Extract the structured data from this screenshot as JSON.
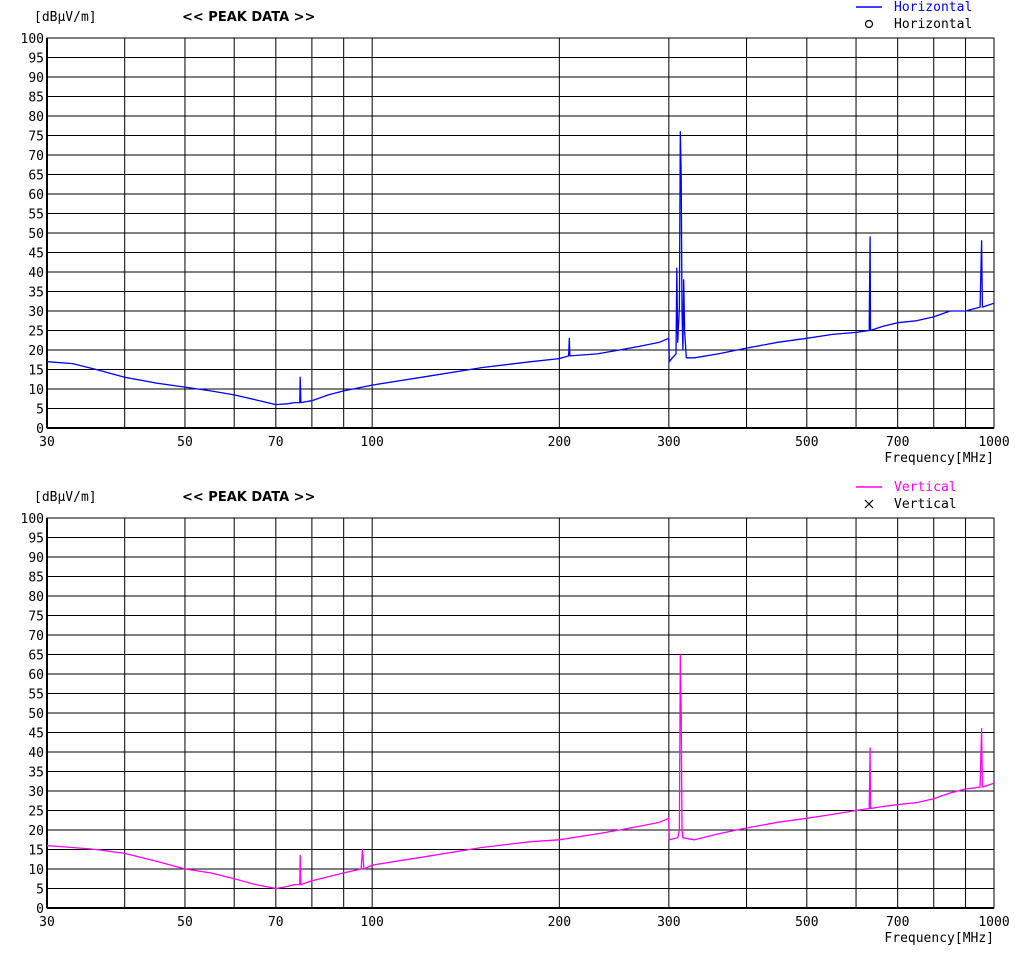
{
  "chart_data": [
    {
      "type": "line",
      "title": "<< PEAK DATA >>",
      "ylabel": "[dBμV/m]",
      "xlabel": "Frequency[MHz]",
      "xscale": "log",
      "xlim": [
        30,
        1000
      ],
      "ylim": [
        0,
        100
      ],
      "xticks": [
        30,
        50,
        70,
        100,
        200,
        300,
        500,
        700,
        1000
      ],
      "yticks": [
        0,
        5,
        10,
        15,
        20,
        25,
        30,
        35,
        40,
        45,
        50,
        55,
        60,
        65,
        70,
        75,
        80,
        85,
        90,
        95,
        100
      ],
      "grid": true,
      "legend_position": "top-right",
      "legend": [
        {
          "symbol": "line",
          "label": "Horizontal",
          "color": "#0000ff"
        },
        {
          "symbol": "circle",
          "label": "Horizontal",
          "color": "#000000"
        }
      ],
      "series": [
        {
          "name": "Horizontal",
          "color": "#0000ff",
          "points": [
            [
              30,
              17
            ],
            [
              33,
              16.5
            ],
            [
              36,
              15
            ],
            [
              40,
              13
            ],
            [
              45,
              11.5
            ],
            [
              50,
              10.5
            ],
            [
              55,
              9.5
            ],
            [
              60,
              8.5
            ],
            [
              65,
              7.2
            ],
            [
              70,
              6
            ],
            [
              73,
              6.2
            ],
            [
              75,
              6.5
            ],
            [
              76.5,
              6.5
            ],
            [
              76.6,
              13
            ],
            [
              76.8,
              6.5
            ],
            [
              80,
              7
            ],
            [
              85,
              8.5
            ],
            [
              90,
              9.5
            ],
            [
              100,
              11
            ],
            [
              120,
              13
            ],
            [
              150,
              15.5
            ],
            [
              180,
              17
            ],
            [
              200,
              17.8
            ],
            [
              207,
              18.5
            ],
            [
              207.5,
              23
            ],
            [
              208,
              18.5
            ],
            [
              230,
              19
            ],
            [
              250,
              20
            ],
            [
              270,
              21
            ],
            [
              290,
              22
            ],
            [
              300,
              23
            ],
            [
              300.5,
              17
            ],
            [
              304,
              18
            ],
            [
              308,
              19
            ],
            [
              309,
              41
            ],
            [
              310,
              22
            ],
            [
              312,
              31
            ],
            [
              313,
              76
            ],
            [
              314,
              65
            ],
            [
              315,
              30
            ],
            [
              316,
              20
            ],
            [
              317,
              38
            ],
            [
              318,
              25
            ],
            [
              320,
              18
            ],
            [
              330,
              18
            ],
            [
              360,
              19
            ],
            [
              400,
              20.5
            ],
            [
              450,
              22
            ],
            [
              500,
              23
            ],
            [
              550,
              24
            ],
            [
              600,
              24.5
            ],
            [
              630,
              25
            ],
            [
              631,
              37
            ],
            [
              632,
              49
            ],
            [
              633,
              25
            ],
            [
              660,
              26
            ],
            [
              700,
              27
            ],
            [
              750,
              27.5
            ],
            [
              800,
              28.5
            ],
            [
              850,
              30
            ],
            [
              900,
              30
            ],
            [
              950,
              31
            ],
            [
              955,
              48
            ],
            [
              958,
              31
            ],
            [
              1000,
              32
            ]
          ]
        }
      ]
    },
    {
      "type": "line",
      "title": "<< PEAK DATA >>",
      "ylabel": "[dBμV/m]",
      "xlabel": "Frequency[MHz]",
      "xscale": "log",
      "xlim": [
        30,
        1000
      ],
      "ylim": [
        0,
        100
      ],
      "xticks": [
        30,
        50,
        70,
        100,
        200,
        300,
        500,
        700,
        1000
      ],
      "yticks": [
        0,
        5,
        10,
        15,
        20,
        25,
        30,
        35,
        40,
        45,
        50,
        55,
        60,
        65,
        70,
        75,
        80,
        85,
        90,
        95,
        100
      ],
      "grid": true,
      "legend_position": "top-right",
      "legend": [
        {
          "symbol": "line",
          "label": "Vertical",
          "color": "#ff00ff"
        },
        {
          "symbol": "cross",
          "label": "Vertical",
          "color": "#000000"
        }
      ],
      "series": [
        {
          "name": "Vertical",
          "color": "#ff00ff",
          "points": [
            [
              30,
              16
            ],
            [
              33,
              15.5
            ],
            [
              36,
              15
            ],
            [
              40,
              14
            ],
            [
              45,
              12
            ],
            [
              50,
              10
            ],
            [
              55,
              9
            ],
            [
              60,
              7.5
            ],
            [
              65,
              6
            ],
            [
              70,
              5
            ],
            [
              73,
              5.5
            ],
            [
              75,
              6
            ],
            [
              76.5,
              6
            ],
            [
              76.6,
              13.5
            ],
            [
              76.8,
              6
            ],
            [
              80,
              7
            ],
            [
              85,
              8
            ],
            [
              90,
              9
            ],
            [
              96,
              10
            ],
            [
              96.5,
              15
            ],
            [
              97,
              10
            ],
            [
              100,
              11
            ],
            [
              120,
              13
            ],
            [
              150,
              15.5
            ],
            [
              180,
              17
            ],
            [
              200,
              17.5
            ],
            [
              230,
              19
            ],
            [
              250,
              20
            ],
            [
              270,
              21
            ],
            [
              290,
              22
            ],
            [
              300,
              23
            ],
            [
              300.5,
              17.5
            ],
            [
              310,
              18
            ],
            [
              312,
              20
            ],
            [
              313,
              65
            ],
            [
              314,
              50
            ],
            [
              315,
              20
            ],
            [
              316,
              18
            ],
            [
              330,
              17.5
            ],
            [
              360,
              19
            ],
            [
              400,
              20.5
            ],
            [
              450,
              22
            ],
            [
              500,
              23
            ],
            [
              550,
              24
            ],
            [
              600,
              25
            ],
            [
              630,
              25.5
            ],
            [
              631,
              32
            ],
            [
              632,
              41
            ],
            [
              633,
              25.5
            ],
            [
              660,
              26
            ],
            [
              700,
              26.5
            ],
            [
              750,
              27
            ],
            [
              800,
              28
            ],
            [
              850,
              29.5
            ],
            [
              900,
              30.5
            ],
            [
              950,
              31
            ],
            [
              955,
              46
            ],
            [
              958,
              31
            ],
            [
              1000,
              32
            ]
          ]
        }
      ]
    }
  ]
}
